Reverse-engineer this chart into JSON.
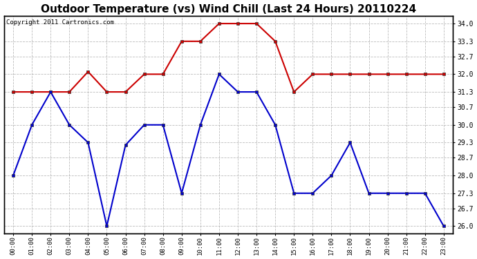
{
  "title": "Outdoor Temperature (vs) Wind Chill (Last 24 Hours) 20110224",
  "copyright": "Copyright 2011 Cartronics.com",
  "x_labels": [
    "00:00",
    "01:00",
    "02:00",
    "03:00",
    "04:00",
    "05:00",
    "06:00",
    "07:00",
    "08:00",
    "09:00",
    "10:00",
    "11:00",
    "12:00",
    "13:00",
    "14:00",
    "15:00",
    "16:00",
    "17:00",
    "18:00",
    "19:00",
    "20:00",
    "21:00",
    "22:00",
    "23:00"
  ],
  "red_data": [
    31.3,
    31.3,
    31.3,
    31.3,
    32.1,
    31.3,
    31.3,
    32.0,
    32.0,
    33.3,
    33.3,
    34.0,
    34.0,
    34.0,
    33.3,
    31.3,
    32.0,
    32.0,
    32.0,
    32.0,
    32.0,
    32.0,
    32.0,
    32.0
  ],
  "blue_data": [
    28.0,
    30.0,
    31.3,
    30.0,
    29.3,
    26.0,
    29.2,
    30.0,
    30.0,
    27.3,
    30.0,
    32.0,
    31.3,
    31.3,
    30.0,
    27.3,
    27.3,
    28.0,
    29.3,
    27.3,
    27.3,
    27.3,
    27.3,
    26.0
  ],
  "ylim_min": 25.7,
  "ylim_max": 34.3,
  "yticks": [
    26.0,
    26.7,
    27.3,
    28.0,
    28.7,
    29.3,
    30.0,
    30.7,
    31.3,
    32.0,
    32.7,
    33.3,
    34.0
  ],
  "red_color": "#cc0000",
  "blue_color": "#0000cc",
  "grid_color": "#aaaaaa",
  "bg_color": "#ffffff",
  "plot_bg_color": "#ffffff",
  "title_fontsize": 11,
  "copyright_fontsize": 6.5
}
